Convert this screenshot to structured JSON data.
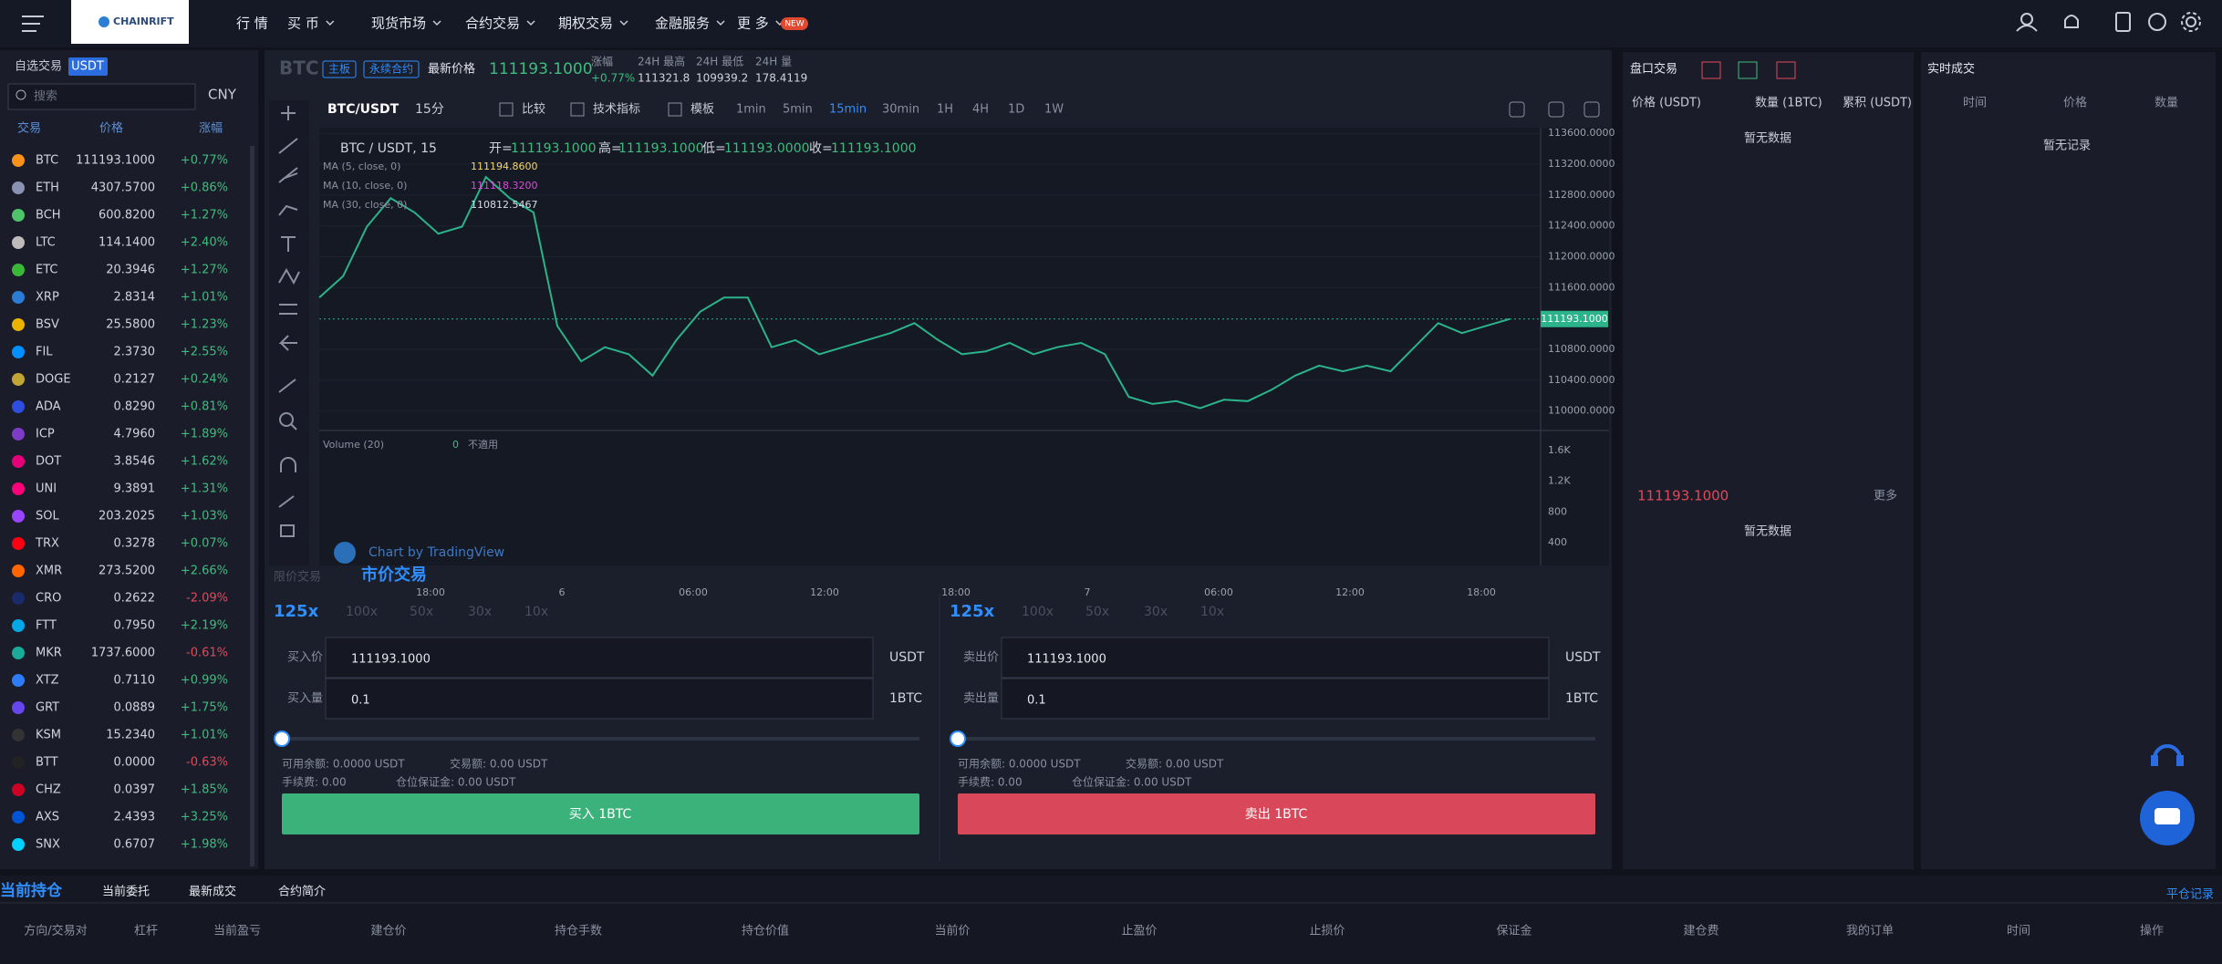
{
  "nav": {
    "logo": "CHAINRIFT",
    "items": [
      "行 情",
      "买 币",
      "现货市场",
      "合约交易",
      "期权交易",
      "金融服务",
      "更 多"
    ],
    "badge": "NEW"
  },
  "market": {
    "tabs": [
      "自选交易",
      "USDT"
    ],
    "search": "搜索",
    "currency": "CNY",
    "headers": [
      "交易",
      "价格",
      "涨幅"
    ],
    "rows": [
      [
        "BTC",
        "111193.1000",
        "+0.77%"
      ],
      [
        "ETH",
        "4307.5700",
        "+0.86%"
      ],
      [
        "BCH",
        "600.8200",
        "+1.27%"
      ],
      [
        "LTC",
        "114.1400",
        "+2.40%"
      ],
      [
        "ETC",
        "20.3946",
        "+1.27%"
      ],
      [
        "XRP",
        "2.8314",
        "+1.01%"
      ],
      [
        "BSV",
        "25.5800",
        "+1.23%"
      ],
      [
        "FIL",
        "2.3730",
        "+2.55%"
      ],
      [
        "DOGE",
        "0.2127",
        "+0.24%"
      ],
      [
        "ADA",
        "0.8290",
        "+0.81%"
      ],
      [
        "ICP",
        "4.7960",
        "+1.89%"
      ],
      [
        "DOT",
        "3.8546",
        "+1.62%"
      ],
      [
        "UNI",
        "9.3891",
        "+1.31%"
      ],
      [
        "SOL",
        "203.2025",
        "+1.03%"
      ],
      [
        "TRX",
        "0.3278",
        "+0.07%"
      ],
      [
        "XMR",
        "273.5200",
        "+2.66%"
      ],
      [
        "CRO",
        "0.2622",
        "-2.09%"
      ],
      [
        "FTT",
        "0.7950",
        "+2.19%"
      ],
      [
        "MKR",
        "1737.6000",
        "-0.61%"
      ],
      [
        "XTZ",
        "0.7110",
        "+0.99%"
      ],
      [
        "GRT",
        "0.0889",
        "+1.75%"
      ],
      [
        "KSM",
        "15.2340",
        "+1.01%"
      ],
      [
        "BTT",
        "0.0000",
        "-0.63%"
      ],
      [
        "CHZ",
        "0.0397",
        "+1.85%"
      ],
      [
        "AXS",
        "2.4393",
        "+3.25%"
      ],
      [
        "SNX",
        "0.6707",
        "+1.98%"
      ]
    ]
  },
  "ticker": {
    "symbol": "BTC",
    "tags": [
      "主板",
      "永续合约"
    ],
    "last_label": "最新价格",
    "last": "111193.1000",
    "stats": [
      {
        "label": "涨幅",
        "value": "+0.77%"
      },
      {
        "label": "24H 最高",
        "value": "111321.8"
      },
      {
        "label": "24H 最低",
        "value": "109939.2"
      },
      {
        "label": "24H 量",
        "value": "178.4119"
      }
    ]
  },
  "toolbar": {
    "pair": "BTC/USDT",
    "interval": "15分",
    "tools": [
      "比较",
      "技术指标",
      "模板"
    ],
    "intervals": [
      "1min",
      "5min",
      "15min",
      "30min",
      "1H",
      "4H",
      "1D",
      "1W"
    ],
    "active": "15min"
  },
  "chart": {
    "legend": "BTC / USDT, 15",
    "ohlc": [
      {
        "label": "开=",
        "value": "111193.1000"
      },
      {
        "label": "高=",
        "value": "111193.1000"
      },
      {
        "label": "低=",
        "value": "111193.0000"
      },
      {
        "label": "收=",
        "value": "111193.1000"
      }
    ],
    "ma": [
      {
        "name": "MA (5, close, 0)",
        "value": "111194.8600",
        "color": "#f5d76e"
      },
      {
        "name": "MA (10, close, 0)",
        "value": "111118.3200",
        "color": "#d64fd6"
      },
      {
        "name": "MA (30, close, 0)",
        "value": "110812.5467",
        "color": "#d8dde8"
      }
    ],
    "ylim": [
      109760,
      113620
    ],
    "yticks": [
      {
        "value": 113600,
        "label": "113600.0000"
      },
      {
        "value": 113200,
        "label": "113200.0000"
      },
      {
        "value": 112800,
        "label": "112800.0000"
      },
      {
        "value": 112400,
        "label": "112400.0000"
      },
      {
        "value": 112000,
        "label": "112000.0000"
      },
      {
        "value": 111600,
        "label": "111600.0000"
      },
      {
        "value": 110800,
        "label": "110800.0000"
      },
      {
        "value": 110400,
        "label": "110400.0000"
      },
      {
        "value": 110000,
        "label": "110000.0000"
      }
    ],
    "last": {
      "value": 111193.1,
      "label": "111193.1000"
    },
    "color": "#2bb38a",
    "closes": [
      111471,
      111747,
      112391,
      112759,
      112575,
      112299,
      112391,
      113034,
      112759,
      112575,
      111103,
      110644,
      110828,
      110736,
      110460,
      110920,
      111287,
      111471,
      111471,
      110828,
      110920,
      110736,
      110828,
      110920,
      111011,
      111140,
      110920,
      110736,
      110773,
      110883,
      110736,
      110828,
      110883,
      110736,
      110184,
      110092,
      110129,
      110037,
      110147,
      110129,
      110276,
      110460,
      110589,
      110515,
      110589,
      110515,
      110828,
      111140,
      111011,
      111103,
      111193
    ],
    "volume": {
      "label": "Volume (20)",
      "value": "0",
      "note": "不適用",
      "ticks": [
        "1.6K",
        "1.2K",
        "800",
        "400"
      ]
    },
    "time_ticks": [
      "18:00",
      "6",
      "06:00",
      "12:00",
      "18:00",
      "7",
      "06:00",
      "12:00",
      "18:00"
    ],
    "watermark": "Chart by TradingView"
  },
  "trade": {
    "tabs": [
      "限价交易",
      "市价交易"
    ],
    "buy": {
      "leverage": [
        "125x",
        "100x",
        "50x",
        "30x",
        "10x"
      ],
      "price_label": "买入价",
      "price": "111193.1000",
      "price_unit": "USDT",
      "qty_label": "买入量",
      "qty": "0.1",
      "qty_unit": "1BTC",
      "info": [
        "可用余额: 0.0000 USDT",
        "交易额: 0.00 USDT",
        "手续费: 0.00",
        "仓位保证金: 0.00 USDT"
      ],
      "button": "买入 1BTC"
    },
    "sell": {
      "leverage": [
        "125x",
        "100x",
        "50x",
        "30x",
        "10x"
      ],
      "price_label": "卖出价",
      "price": "111193.1000",
      "price_unit": "USDT",
      "qty_label": "卖出量",
      "qty": "0.1",
      "qty_unit": "1BTC",
      "info": [
        "可用余额: 0.0000 USDT",
        "交易额: 0.00 USDT",
        "手续费: 0.00",
        "仓位保证金: 0.00 USDT"
      ],
      "button": "卖出 1BTC"
    }
  },
  "orderbook": {
    "title": "盘口交易",
    "headers": [
      "价格 (USDT)",
      "数量 (1BTC)",
      "累积 (USDT)"
    ],
    "empty_top": "暂无数据",
    "mid_price": "111193.1000",
    "more": "更多",
    "empty_bottom": "暂无数据"
  },
  "trades": {
    "title": "实时成交",
    "headers": [
      "时间",
      "价格",
      "数量"
    ],
    "empty": "暂无记录"
  },
  "positions": {
    "tabs": [
      "当前持仓",
      "当前委托",
      "最新成交",
      "合约简介"
    ],
    "history": "平仓记录",
    "headers": [
      "方向/交易对",
      "杠杆",
      "当前盈亏",
      "建仓价",
      "持仓手数",
      "持仓价值",
      "当前价",
      "止盈价",
      "止损价",
      "保证金",
      "建仓费",
      "我的订单",
      "时间",
      "操作"
    ]
  }
}
